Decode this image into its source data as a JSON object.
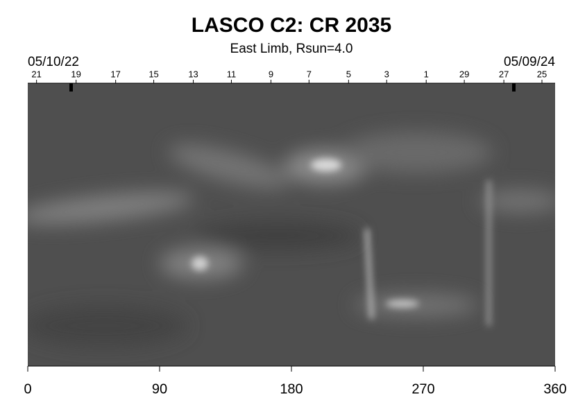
{
  "chart_data": {
    "type": "image",
    "title": "LASCO C2: CR 2035",
    "subtitle": "East Limb, Rsun=4.0",
    "start_date": "05/10/22",
    "end_date": "05/09/24",
    "xlim": [
      0,
      360
    ],
    "xticks": [
      0,
      90,
      180,
      270,
      360
    ],
    "top_ticks": [
      {
        "value": 6,
        "label": "21"
      },
      {
        "value": 33,
        "label": "19"
      },
      {
        "value": 60,
        "label": "17"
      },
      {
        "value": 86,
        "label": "15"
      },
      {
        "value": 113,
        "label": "13"
      },
      {
        "value": 139,
        "label": "11"
      },
      {
        "value": 166,
        "label": "9"
      },
      {
        "value": 192,
        "label": "7"
      },
      {
        "value": 219,
        "label": "5"
      },
      {
        "value": 245,
        "label": "3"
      },
      {
        "value": 272,
        "label": "1"
      },
      {
        "value": 298,
        "label": "29"
      },
      {
        "value": 325,
        "label": "27"
      },
      {
        "value": 351,
        "label": "25"
      }
    ]
  }
}
